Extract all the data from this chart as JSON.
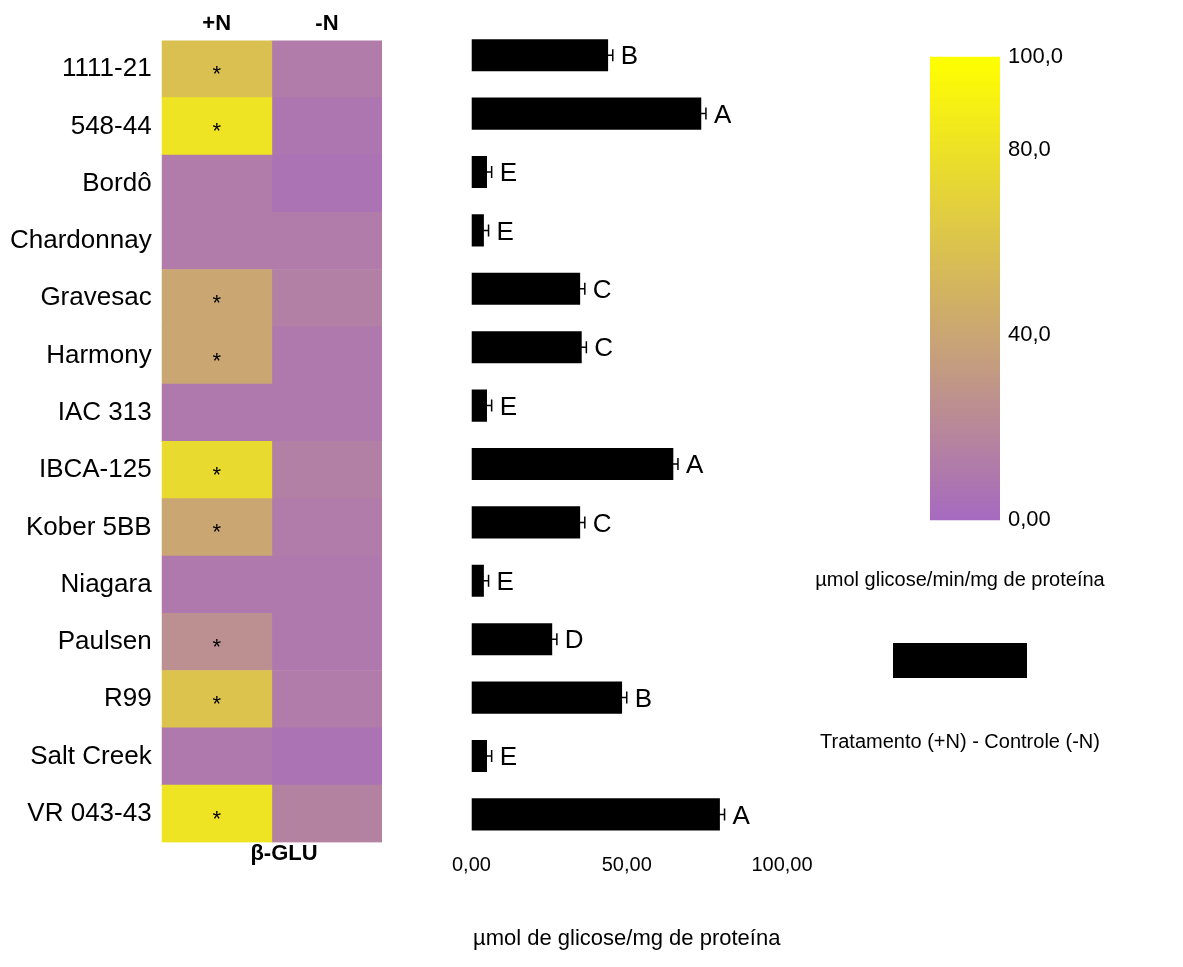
{
  "chart_data": [
    {
      "type": "heatmap",
      "xlabel": "β-GLU",
      "categories": [
        "+N",
        "-N"
      ],
      "y_categories": [
        "1111-21",
        "548-44",
        "Bordô",
        "Chardonnay",
        "Gravesac",
        "Harmony",
        "IAC 313",
        "IBCA-125",
        "Kober 5BB",
        "Niagara",
        "Paulsen",
        "R99",
        "Salt Creek",
        "VR 043-43"
      ],
      "cells": [
        [
          58,
          12
        ],
        [
          82,
          8
        ],
        [
          12,
          6
        ],
        [
          12,
          12
        ],
        [
          40,
          14
        ],
        [
          40,
          10
        ],
        [
          10,
          10
        ],
        [
          75,
          14
        ],
        [
          40,
          12
        ],
        [
          10,
          10
        ],
        [
          25,
          10
        ],
        [
          60,
          12
        ],
        [
          10,
          6
        ],
        [
          82,
          16
        ]
      ],
      "cell_labels": [
        [
          "*",
          null
        ],
        [
          "*",
          null
        ],
        [
          null,
          null
        ],
        [
          null,
          null
        ],
        [
          "*",
          null
        ],
        [
          "*",
          null
        ],
        [
          null,
          null
        ],
        [
          "*",
          null
        ],
        [
          "*",
          null
        ],
        [
          null,
          null
        ],
        [
          "*",
          null
        ],
        [
          "*",
          null
        ],
        [
          null,
          null
        ],
        [
          "*",
          null
        ]
      ],
      "clim": [
        0,
        100
      ],
      "cticks": [
        {
          "value": 0,
          "label": "0,00"
        },
        {
          "value": 40,
          "label": "40,0"
        },
        {
          "value": 80,
          "label": "80,0"
        },
        {
          "value": 100,
          "label": "100,0"
        }
      ],
      "clabel": "µmol glicose/min/mg de proteína"
    },
    {
      "type": "bar",
      "orientation": "horizontal",
      "categories": [
        null,
        null,
        null,
        null,
        null,
        null,
        null,
        null,
        null,
        null,
        null,
        null,
        null,
        null
      ],
      "series": [
        {
          "name": "Tratamento (+N) - Controle (-N)",
          "color": "#000000",
          "values": [
            44,
            74,
            5,
            4,
            35,
            35.5,
            5,
            65,
            35,
            4,
            26,
            48.5,
            5,
            80
          ],
          "errors": [
            1.5,
            1.5,
            1.5,
            1.5,
            1.5,
            1.5,
            1.5,
            1.5,
            1.5,
            1.5,
            1.5,
            1.5,
            1.5,
            1.5
          ],
          "value_labels": [
            "B",
            "A",
            "E",
            "E",
            "C",
            "C",
            "E",
            "A",
            "C",
            "E",
            "D",
            "B",
            "E",
            "A"
          ]
        }
      ],
      "xlim": [
        0,
        100
      ],
      "xticks": [
        {
          "value": 0,
          "label": "0,00"
        },
        {
          "value": 50,
          "label": "50,00"
        },
        {
          "value": 100,
          "label": "100,00"
        }
      ],
      "xlabel": "µmol de glicose/mg de proteína",
      "tick_labels": "x",
      "legend": "right",
      "grid": false
    }
  ]
}
